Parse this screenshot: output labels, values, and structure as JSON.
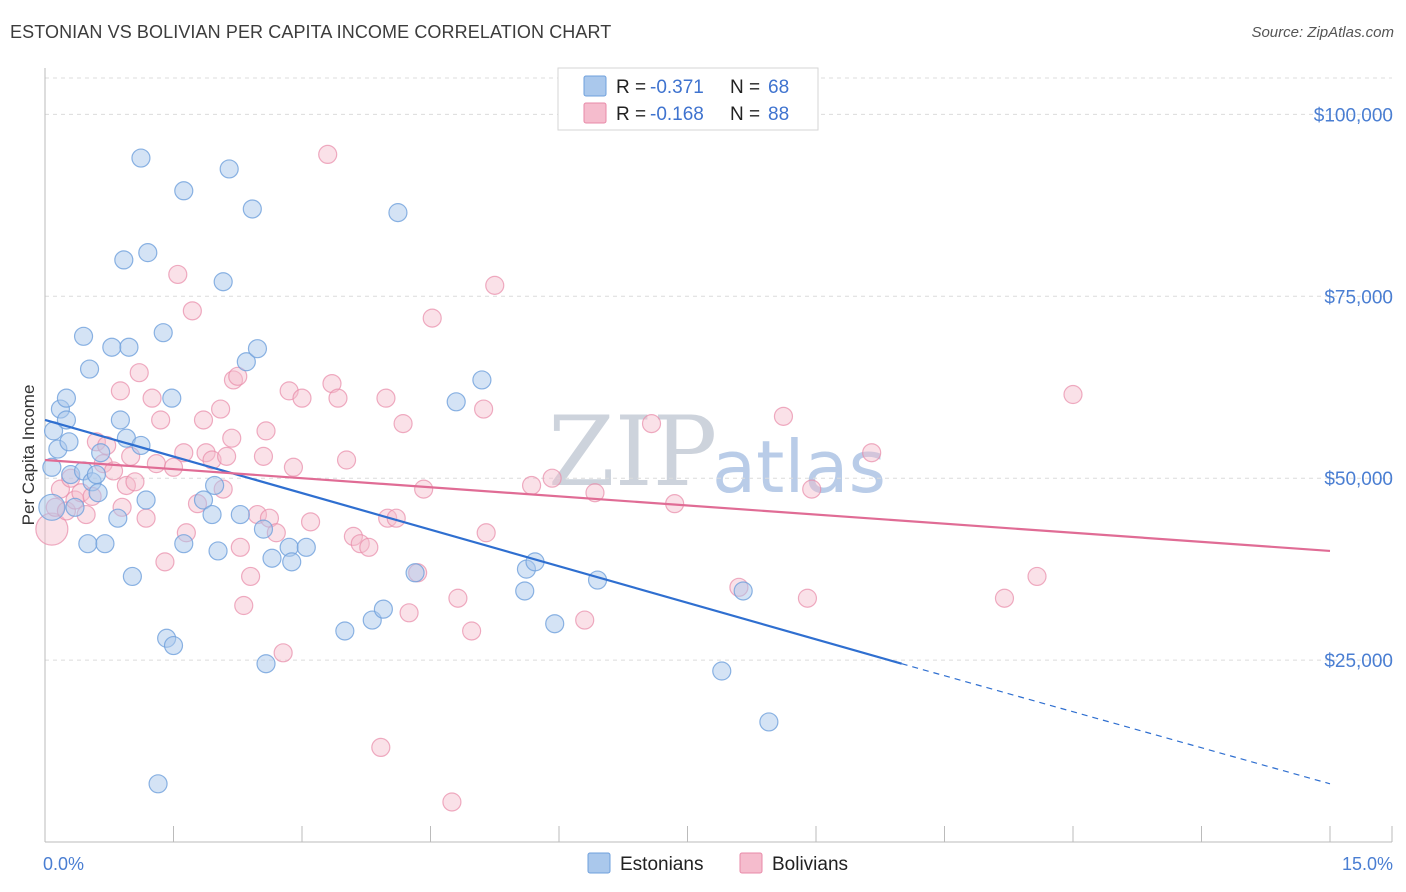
{
  "title": "ESTONIAN VS BOLIVIAN PER CAPITA INCOME CORRELATION CHART",
  "source": "Source: ZipAtlas.com",
  "colors": {
    "estonians": "#6fa0dc",
    "estonians_fill": "#aac8ec",
    "bolivians": "#e88aa8",
    "bolivians_fill": "#f5bccd",
    "blue_line": "#2f6fd0",
    "pink_line": "#e06c95",
    "tick_text": "#4a7ed2"
  },
  "watermark": {
    "zip": "ZIP",
    "atlas": "atlas"
  },
  "legend": {
    "rows": [
      {
        "r_label": "R = ",
        "r_value": "-0.371",
        "n_label": "N = ",
        "n_value": "68"
      },
      {
        "r_label": "R = ",
        "r_value": "-0.168",
        "n_label": "N = ",
        "n_value": "88"
      }
    ]
  },
  "bottom_legend": [
    "Estonians",
    "Bolivians"
  ],
  "chart_data": {
    "type": "scatter",
    "xlabel": "",
    "ylabel": "Per Capita Income",
    "xlim": [
      0,
      15
    ],
    "ylim": [
      0,
      105000
    ],
    "x_tick_labels": [
      "0.0%",
      "15.0%"
    ],
    "y_ticks": [
      25000,
      50000,
      75000,
      100000
    ],
    "y_tick_labels": [
      "$25,000",
      "$50,000",
      "$75,000",
      "$100,000"
    ],
    "grid": true,
    "series": [
      {
        "name": "Estonians",
        "points": [
          [
            0.08,
            46000
          ],
          [
            0.08,
            51500
          ],
          [
            0.1,
            56500
          ],
          [
            0.15,
            54000
          ],
          [
            0.18,
            59500
          ],
          [
            0.25,
            61000
          ],
          [
            0.28,
            55000
          ],
          [
            0.3,
            50500
          ],
          [
            0.35,
            46000
          ],
          [
            0.45,
            51000
          ],
          [
            0.45,
            69500
          ],
          [
            0.5,
            41000
          ],
          [
            0.52,
            65000
          ],
          [
            0.55,
            49500
          ],
          [
            0.6,
            50500
          ],
          [
            0.62,
            48000
          ],
          [
            0.65,
            53500
          ],
          [
            0.7,
            41000
          ],
          [
            0.78,
            68000
          ],
          [
            0.85,
            44500
          ],
          [
            0.88,
            58000
          ],
          [
            0.92,
            80000
          ],
          [
            0.95,
            55500
          ],
          [
            0.98,
            68000
          ],
          [
            1.02,
            36500
          ],
          [
            1.12,
            54500
          ],
          [
            1.12,
            94000
          ],
          [
            1.18,
            47000
          ],
          [
            1.2,
            81000
          ],
          [
            1.38,
            70000
          ],
          [
            1.42,
            28000
          ],
          [
            1.48,
            61000
          ],
          [
            1.5,
            27000
          ],
          [
            1.62,
            41000
          ],
          [
            1.62,
            89500
          ],
          [
            1.85,
            47000
          ],
          [
            1.95,
            45000
          ],
          [
            1.98,
            49000
          ],
          [
            2.02,
            40000
          ],
          [
            2.08,
            77000
          ],
          [
            2.15,
            92500
          ],
          [
            2.28,
            45000
          ],
          [
            2.35,
            66000
          ],
          [
            2.42,
            87000
          ],
          [
            2.48,
            67800
          ],
          [
            2.55,
            43000
          ],
          [
            2.58,
            24500
          ],
          [
            2.65,
            39000
          ],
          [
            2.85,
            40500
          ],
          [
            2.88,
            38500
          ],
          [
            3.05,
            40500
          ],
          [
            3.5,
            29000
          ],
          [
            3.82,
            30500
          ],
          [
            3.95,
            32000
          ],
          [
            4.12,
            86500
          ],
          [
            4.32,
            37000
          ],
          [
            4.8,
            60500
          ],
          [
            5.1,
            63500
          ],
          [
            5.6,
            34500
          ],
          [
            5.62,
            37500
          ],
          [
            5.72,
            38500
          ],
          [
            5.95,
            30000
          ],
          [
            6.45,
            36000
          ],
          [
            7.9,
            23500
          ],
          [
            8.15,
            34500
          ],
          [
            8.45,
            16500
          ],
          [
            1.32,
            8000
          ],
          [
            0.25,
            58000
          ]
        ]
      },
      {
        "name": "Bolivians",
        "points": [
          [
            0.08,
            43000
          ],
          [
            0.12,
            46000
          ],
          [
            0.18,
            48500
          ],
          [
            0.25,
            45500
          ],
          [
            0.3,
            50000
          ],
          [
            0.35,
            47000
          ],
          [
            0.42,
            48000
          ],
          [
            0.48,
            45000
          ],
          [
            0.55,
            47500
          ],
          [
            0.6,
            55000
          ],
          [
            0.68,
            52000
          ],
          [
            0.72,
            54500
          ],
          [
            0.8,
            51000
          ],
          [
            0.88,
            62000
          ],
          [
            0.9,
            46000
          ],
          [
            0.95,
            49000
          ],
          [
            1.0,
            53000
          ],
          [
            1.05,
            49500
          ],
          [
            1.1,
            64500
          ],
          [
            1.18,
            44500
          ],
          [
            1.25,
            61000
          ],
          [
            1.3,
            52000
          ],
          [
            1.35,
            58000
          ],
          [
            1.4,
            38500
          ],
          [
            1.5,
            51500
          ],
          [
            1.55,
            78000
          ],
          [
            1.62,
            53500
          ],
          [
            1.65,
            42500
          ],
          [
            1.72,
            73000
          ],
          [
            1.78,
            46500
          ],
          [
            1.85,
            58000
          ],
          [
            1.88,
            53500
          ],
          [
            1.95,
            52500
          ],
          [
            2.05,
            59500
          ],
          [
            2.08,
            48500
          ],
          [
            2.12,
            53000
          ],
          [
            2.18,
            55500
          ],
          [
            2.2,
            63500
          ],
          [
            2.25,
            64000
          ],
          [
            2.28,
            40500
          ],
          [
            2.32,
            32500
          ],
          [
            2.4,
            36500
          ],
          [
            2.48,
            45000
          ],
          [
            2.55,
            53000
          ],
          [
            2.58,
            56500
          ],
          [
            2.62,
            44500
          ],
          [
            2.7,
            42500
          ],
          [
            2.78,
            26000
          ],
          [
            2.85,
            62000
          ],
          [
            2.9,
            51500
          ],
          [
            3.0,
            61000
          ],
          [
            3.1,
            44000
          ],
          [
            3.3,
            94500
          ],
          [
            3.35,
            63000
          ],
          [
            3.42,
            61000
          ],
          [
            3.52,
            52500
          ],
          [
            3.6,
            42000
          ],
          [
            3.68,
            41000
          ],
          [
            3.78,
            40500
          ],
          [
            3.92,
            13000
          ],
          [
            3.98,
            61000
          ],
          [
            4.0,
            44500
          ],
          [
            4.1,
            44500
          ],
          [
            4.18,
            57500
          ],
          [
            4.25,
            31500
          ],
          [
            4.35,
            37000
          ],
          [
            4.42,
            48500
          ],
          [
            4.52,
            72000
          ],
          [
            4.75,
            5500
          ],
          [
            4.82,
            33500
          ],
          [
            4.98,
            29000
          ],
          [
            5.12,
            59500
          ],
          [
            5.15,
            42500
          ],
          [
            5.25,
            76500
          ],
          [
            5.68,
            49000
          ],
          [
            5.92,
            50000
          ],
          [
            6.3,
            30500
          ],
          [
            6.42,
            48000
          ],
          [
            7.08,
            57500
          ],
          [
            7.35,
            46500
          ],
          [
            8.1,
            35000
          ],
          [
            8.62,
            58500
          ],
          [
            8.9,
            33500
          ],
          [
            8.95,
            48500
          ],
          [
            9.65,
            53500
          ],
          [
            11.2,
            33500
          ],
          [
            11.58,
            36500
          ],
          [
            12.0,
            61500
          ]
        ]
      }
    ],
    "trend_lines": [
      {
        "name": "Estonians",
        "solid": [
          [
            0,
            58000
          ],
          [
            10,
            24500
          ]
        ],
        "dashed": [
          [
            10,
            24500
          ],
          [
            15,
            8000
          ]
        ]
      },
      {
        "name": "Bolivians",
        "solid": [
          [
            0,
            52500
          ],
          [
            15,
            40000
          ]
        ]
      }
    ],
    "legend_position": "top-center"
  }
}
